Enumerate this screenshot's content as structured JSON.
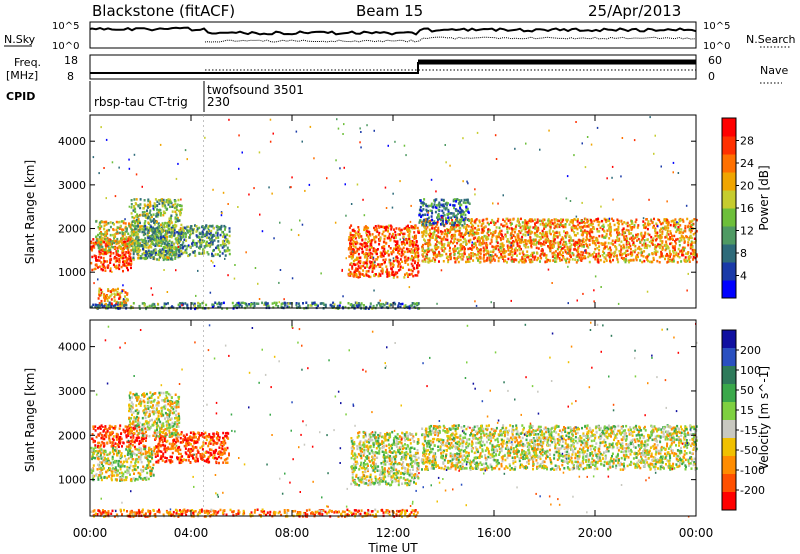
{
  "header": {
    "station": "Blackstone (fitACF)",
    "beam": "Beam 15",
    "date": "25/Apr/2013"
  },
  "aux_panels": {
    "nsky_label": "N.Sky",
    "nsearch_label": "N.Search",
    "freq_label_1": "Freq.",
    "freq_label_2": "[MHz]",
    "nave_label": "Nave",
    "cpid_label": "CPID",
    "cpid_1": "rbsp-tau CT-trig",
    "cpid_2a": "twofsound 3501",
    "cpid_2b": "230",
    "noise_left_ticks": [
      "10^5",
      "10^0"
    ],
    "noise_right_ticks": [
      "10^5",
      "10^0"
    ],
    "freq_ticks": [
      "18",
      "8"
    ],
    "nave_ticks": [
      "60",
      "0"
    ]
  },
  "chart_data": [
    {
      "type": "heatmap",
      "quantity": "power",
      "ylabel": "Slant Range [km]",
      "xlabel": "Time UT",
      "x_ticks": [
        "00:00",
        "04:00",
        "08:00",
        "12:00",
        "16:00",
        "20:00",
        "00:00"
      ],
      "x_hours": [
        0,
        4,
        8,
        12,
        16,
        20,
        24
      ],
      "y_ticks": [
        1000,
        2000,
        3000,
        4000
      ],
      "ylim": [
        180,
        4600
      ],
      "xlim": [
        0,
        24
      ],
      "colorbar": {
        "label": "Power [dB]",
        "ticks": [
          "4",
          "8",
          "12",
          "16",
          "20",
          "24",
          "28"
        ],
        "colors": [
          "#0000ff",
          "#1a3aa8",
          "#2e6b7a",
          "#4f9a63",
          "#6dbf3a",
          "#c6cc2e",
          "#f0a500",
          "#ff7000",
          "#ff3000",
          "#ff0000"
        ]
      },
      "scatter_regions": [
        {
          "t0": 0.0,
          "t1": 1.6,
          "r0": 1050,
          "r1": 1800,
          "level": 0.85
        },
        {
          "t0": 0.2,
          "t1": 2.0,
          "r0": 1500,
          "r1": 2200,
          "level": 0.55
        },
        {
          "t0": 1.6,
          "t1": 3.6,
          "r0": 1300,
          "r1": 2700,
          "level": 0.45
        },
        {
          "t0": 2.0,
          "t1": 5.5,
          "r0": 1400,
          "r1": 2100,
          "level": 0.35
        },
        {
          "t0": 0.3,
          "t1": 1.5,
          "r0": 200,
          "r1": 650,
          "level": 0.7
        },
        {
          "t0": 10.2,
          "t1": 13.0,
          "r0": 900,
          "r1": 2100,
          "level": 0.8
        },
        {
          "t0": 13.1,
          "t1": 24.0,
          "r0": 1250,
          "r1": 2250,
          "level": 0.7
        },
        {
          "t0": 13.0,
          "t1": 15.0,
          "r0": 2100,
          "r1": 2700,
          "level": 0.25
        },
        {
          "t0": 0.0,
          "t1": 13.0,
          "r0": 190,
          "r1": 330,
          "level": 0.3
        }
      ]
    },
    {
      "type": "heatmap",
      "quantity": "velocity",
      "ylabel": "Slant Range [km]",
      "xlabel": "Time UT",
      "x_ticks": [
        "00:00",
        "04:00",
        "08:00",
        "12:00",
        "16:00",
        "20:00",
        "00:00"
      ],
      "x_hours": [
        0,
        4,
        8,
        12,
        16,
        20,
        24
      ],
      "y_ticks": [
        1000,
        2000,
        3000,
        4000
      ],
      "ylim": [
        180,
        4600
      ],
      "xlim": [
        0,
        24
      ],
      "colorbar": {
        "label": "Velocity [m s^-1]",
        "ticks": [
          "200",
          "100",
          "50",
          "15",
          "-15",
          "-50",
          "-100",
          "-200"
        ],
        "colors": [
          "#1010a0",
          "#2a50c0",
          "#2e7a5a",
          "#3aa84a",
          "#7ed040",
          "#c8c8c0",
          "#f0c000",
          "#ff8c00",
          "#ff5000",
          "#ff0000"
        ]
      },
      "scatter_regions": [
        {
          "t0": 0.0,
          "t1": 2.2,
          "r0": 1750,
          "r1": 2250,
          "level": 0.92
        },
        {
          "t0": 0.0,
          "t1": 2.5,
          "r0": 1000,
          "r1": 1750,
          "level": 0.55
        },
        {
          "t0": 2.5,
          "t1": 5.5,
          "r0": 1400,
          "r1": 2100,
          "level": 0.9
        },
        {
          "t0": 1.5,
          "t1": 3.5,
          "r0": 2000,
          "r1": 3000,
          "level": 0.55
        },
        {
          "t0": 10.3,
          "t1": 13.0,
          "r0": 900,
          "r1": 2100,
          "level": 0.55
        },
        {
          "t0": 13.1,
          "t1": 24.0,
          "r0": 1250,
          "r1": 2250,
          "level": 0.55
        },
        {
          "t0": 0.0,
          "t1": 13.0,
          "r0": 190,
          "r1": 350,
          "level": 0.8
        }
      ]
    }
  ]
}
